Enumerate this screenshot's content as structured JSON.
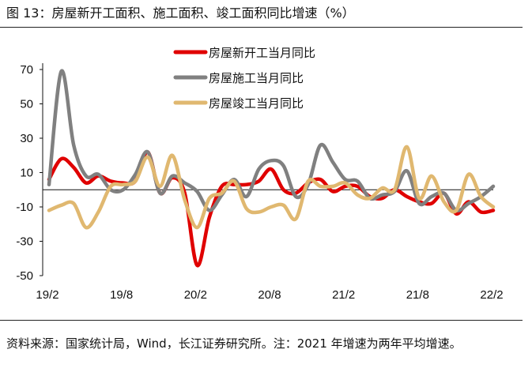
{
  "title": "图 13：房屋新开工面积、施工面积、竣工面积同比增速（%）",
  "source": "资料来源：国家统计局，Wind，长江证券研究所。注：2021 年增速为两年平均增速。",
  "chart_data": {
    "type": "line",
    "title": "房屋新开工面积、施工面积、竣工面积同比增速（%）",
    "xlabel": "",
    "ylabel": "",
    "ylim": [
      -50,
      70
    ],
    "yticks": [
      -50,
      -30,
      -10,
      10,
      30,
      50,
      70
    ],
    "x_tick_labels": [
      "19/2",
      "19/8",
      "20/2",
      "20/8",
      "21/2",
      "21/8",
      "22/2"
    ],
    "x": [
      "19/2",
      "19/3",
      "19/4",
      "19/5",
      "19/6",
      "19/7",
      "19/8",
      "19/9",
      "19/10",
      "19/11",
      "19/12",
      "20/1",
      "20/2",
      "20/3",
      "20/4",
      "20/5",
      "20/6",
      "20/7",
      "20/8",
      "20/9",
      "20/10",
      "20/11",
      "20/12",
      "21/1",
      "21/2",
      "21/3",
      "21/4",
      "21/5",
      "21/6",
      "21/7",
      "21/8",
      "21/9",
      "21/10",
      "21/11",
      "21/12",
      "22/1",
      "22/2"
    ],
    "legend_position": "top",
    "series": [
      {
        "name": "房屋新开工当月同比",
        "color": "#e00000",
        "values": [
          6,
          18,
          13,
          4,
          8,
          5,
          4,
          5,
          22,
          -2,
          7,
          -2,
          -44,
          -16,
          2,
          3,
          3,
          5,
          12,
          0,
          -2,
          4,
          6,
          -1,
          2,
          2,
          -4,
          -5,
          0,
          -4,
          -7,
          -8,
          -2,
          -14,
          -7,
          -13,
          -12
        ]
      },
      {
        "name": "房屋施工当月同比",
        "color": "#808080",
        "values": [
          3,
          69,
          26,
          8,
          9,
          0,
          0,
          9,
          22,
          -2,
          8,
          4,
          -1,
          -12,
          -3,
          6,
          -4,
          12,
          17,
          14,
          -4,
          3,
          26,
          16,
          6,
          5,
          -5,
          -3,
          -1,
          11,
          -8,
          -4,
          -2,
          -12,
          -8,
          -4,
          2
        ]
      },
      {
        "name": "房屋竣工当月同比",
        "color": "#e0b870",
        "values": [
          -12,
          -9,
          -8,
          -22,
          -13,
          2,
          3,
          5,
          19,
          2,
          20,
          -6,
          -22,
          -5,
          -2,
          5,
          -11,
          -13,
          -10,
          -9,
          -17,
          5,
          2,
          2,
          4,
          -3,
          -5,
          1,
          0,
          25,
          -5,
          8,
          -7,
          -12,
          9,
          -4,
          -10
        ]
      }
    ]
  }
}
